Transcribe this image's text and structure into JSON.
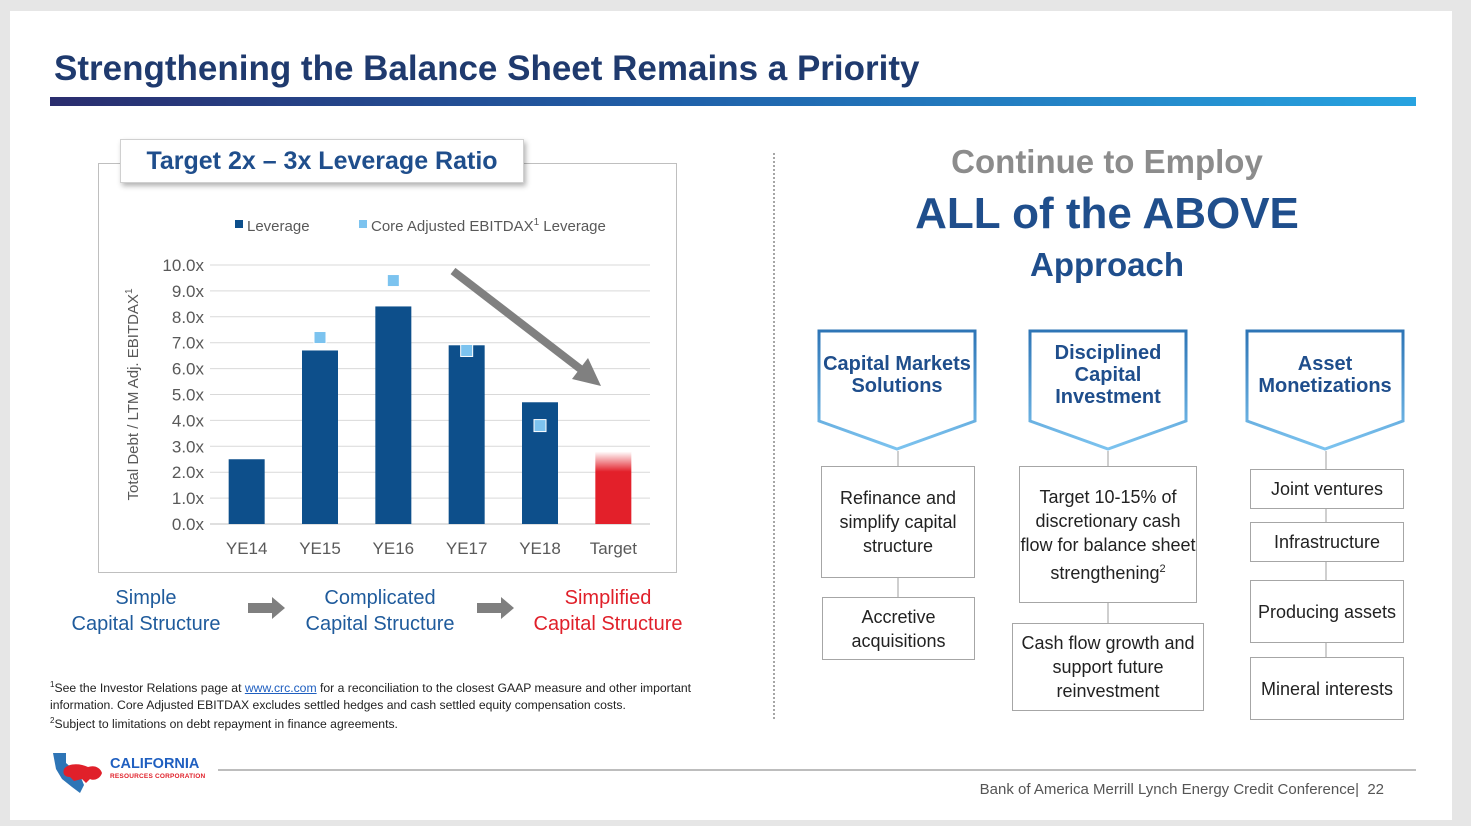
{
  "slide": {
    "title": "Strengthening the Balance Sheet Remains a Priority",
    "chart_tab": "Target 2x – 3x Leverage Ratio",
    "flow": [
      {
        "line1": "Simple",
        "line2": "Capital Structure"
      },
      {
        "line1": "Complicated",
        "line2": "Capital Structure"
      },
      {
        "line1": "Simplified",
        "line2": "Capital Structure"
      }
    ],
    "footnotes": {
      "f1_sup": "1",
      "f1_pre": "See the Investor Relations page at ",
      "f1_link": "www.crc.com",
      "f1_post": " for a reconciliation to the closest GAAP measure and other important information. Core Adjusted EBITDAX excludes settled hedges and cash settled equity compensation costs.",
      "f2_sup": "2",
      "f2_text": "Subject to limitations on debt repayment in finance agreements."
    },
    "right": {
      "line1": "Continue to Employ",
      "line2": "ALL of the ABOVE",
      "line3": "Approach"
    },
    "columns": [
      {
        "header": "Capital Markets Solutions",
        "boxes": [
          "Refinance and simplify capital structure",
          "Accretive acquisitions"
        ]
      },
      {
        "header": "Disciplined Capital Investment",
        "boxes": [
          "Target 10-15% of discretionary cash flow for balance sheet strengthening",
          "Cash flow growth and support future reinvestment"
        ],
        "box1_sup": "2"
      },
      {
        "header": "Asset Monetizations",
        "boxes": [
          "Joint ventures",
          "Infrastructure",
          "Producing assets",
          "Mineral interests"
        ]
      }
    ],
    "logo": {
      "name": "CALIFORNIA",
      "sub": "RESOURCES CORPORATION"
    },
    "footer": "Bank of America Merrill Lynch Energy Credit Conference",
    "page_number": "22"
  },
  "colors": {
    "navy": "#1f4e8c",
    "bar": "#0d4f8b",
    "marker": "#7cc3ef",
    "target": "#e3202a",
    "arrow": "#808080"
  },
  "chart_data": {
    "type": "bar",
    "categories": [
      "YE14",
      "YE15",
      "YE16",
      "YE17",
      "YE18",
      "Target"
    ],
    "series": [
      {
        "name": "Leverage",
        "values": [
          2.5,
          6.7,
          8.4,
          6.9,
          4.7,
          2.5
        ]
      },
      {
        "name": "Core Adjusted EBITDAX",
        "name_sup": "1",
        "name_suffix": " Leverage",
        "values": [
          null,
          7.2,
          9.4,
          6.7,
          3.8,
          null
        ]
      }
    ],
    "target_range": [
      2.0,
      3.0
    ],
    "ylabel": "Total Debt / LTM Adj. EBITDAX",
    "ylabel_sup": "1",
    "ylim": [
      0,
      10
    ],
    "yticks": [
      "0.0x",
      "1.0x",
      "2.0x",
      "3.0x",
      "4.0x",
      "5.0x",
      "6.0x",
      "7.0x",
      "8.0x",
      "9.0x",
      "10.0x"
    ],
    "grid": true,
    "legend": "top"
  }
}
